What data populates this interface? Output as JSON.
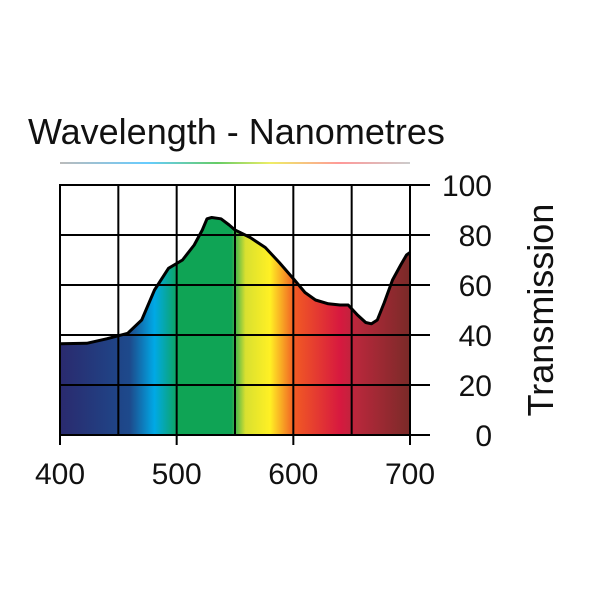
{
  "chart_data": {
    "type": "area",
    "title": "Wavelength - Nanometres",
    "xlabel": "Wavelength - Nanometres",
    "ylabel": "Transmission",
    "xlim": [
      400,
      700
    ],
    "ylim": [
      0,
      100
    ],
    "grid": true,
    "x_ticks": [
      400,
      500,
      600,
      700
    ],
    "y_ticks": [
      0,
      20,
      40,
      60,
      80,
      100
    ],
    "series": [
      {
        "name": "Transmission",
        "x": [
          400,
          423,
          440,
          458,
          470,
          481,
          493,
          505,
          515,
          522,
          526,
          530,
          538,
          545,
          550,
          563,
          576,
          588,
          601,
          610,
          619,
          630,
          640,
          647,
          655,
          662,
          667,
          672,
          678,
          685,
          692,
          697,
          700
        ],
        "values": [
          36.5,
          36.7,
          38.5,
          40.7,
          46,
          58,
          66.7,
          70,
          76,
          82,
          86.5,
          87,
          86.5,
          84,
          82,
          79,
          75,
          69,
          62,
          57,
          54,
          52.5,
          52,
          52,
          48,
          45,
          44.5,
          46,
          53,
          62,
          68,
          72,
          73
        ]
      }
    ],
    "spectrum_colors": [
      "#2a2a6e",
      "#1d4a8c",
      "#00a9e6",
      "#0fa455",
      "#0fa455",
      "#d9e030",
      "#fff024",
      "#f15a24",
      "#d7193f",
      "#b7283b",
      "#7a2a28"
    ]
  }
}
